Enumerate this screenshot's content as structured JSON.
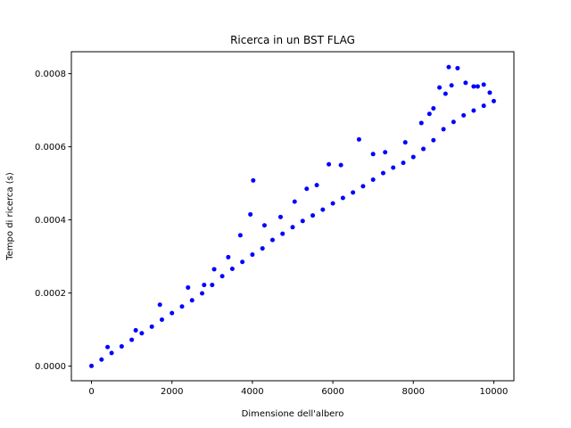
{
  "chart_data": {
    "type": "scatter",
    "title": "Ricerca in un BST FLAG",
    "xlabel": "Dimensione dell'albero",
    "ylabel": "Tempo di ricerca (s)",
    "xlim": [
      -500,
      10500
    ],
    "ylim": [
      -4e-05,
      0.00086
    ],
    "xticks": [
      0,
      2000,
      4000,
      6000,
      8000,
      10000
    ],
    "xtick_labels": [
      "0",
      "2000",
      "4000",
      "6000",
      "8000",
      "10000"
    ],
    "yticks": [
      0,
      0.0002,
      0.0004,
      0.0006,
      0.0008
    ],
    "ytick_labels": [
      "0.0000",
      "0.0002",
      "0.0004",
      "0.0006",
      "0.0008"
    ],
    "grid": false,
    "series": [
      {
        "color": "#0000ff",
        "marker": "circle",
        "x": [
          0,
          250,
          500,
          750,
          1000,
          1250,
          1500,
          1750,
          2000,
          2250,
          2500,
          2750,
          3000,
          3250,
          3500,
          3750,
          4000,
          4250,
          4500,
          4750,
          5000,
          5250,
          5500,
          5750,
          6000,
          6250,
          6500,
          6750,
          7000,
          7250,
          7500,
          7750,
          8000,
          8250,
          8500,
          8750,
          9000,
          9250,
          9500,
          9750,
          10000
        ],
        "y": [
          5e-07,
          1.8e-05,
          3.6e-05,
          5.4e-05,
          7.2e-05,
          9e-05,
          0.000108,
          0.000127,
          0.000145,
          0.000163,
          0.00018,
          0.000199,
          0.000222,
          0.000246,
          0.000266,
          0.000285,
          0.000305,
          0.000322,
          0.000345,
          0.000362,
          0.00038,
          0.000397,
          0.000412,
          0.000428,
          0.000445,
          0.00046,
          0.000475,
          0.000492,
          0.00051,
          0.000528,
          0.000543,
          0.000556,
          0.000572,
          0.000594,
          0.000618,
          0.000648,
          0.000668,
          0.000686,
          0.000699,
          0.000712,
          0.000725
        ]
      },
      {
        "color": "#0000ff",
        "marker": "circle",
        "x": [
          400,
          1100,
          1700,
          2400,
          2800,
          3050,
          3400,
          3700,
          3950,
          4020,
          4300,
          4700,
          5050,
          5350,
          5600,
          5900,
          6200,
          6650,
          7000,
          7300,
          7800,
          8200,
          8400,
          8500,
          8650,
          8800,
          8880,
          8950,
          9100,
          9300,
          9500,
          9600,
          9750,
          9900
        ],
        "y": [
          5.2e-05,
          9.8e-05,
          0.000168,
          0.000215,
          0.000222,
          0.000265,
          0.000298,
          0.000358,
          0.000415,
          0.000508,
          0.000385,
          0.000408,
          0.00045,
          0.000485,
          0.000495,
          0.000552,
          0.00055,
          0.00062,
          0.00058,
          0.000585,
          0.000612,
          0.000665,
          0.00069,
          0.000705,
          0.000762,
          0.000745,
          0.000818,
          0.000768,
          0.000815,
          0.000775,
          0.000765,
          0.000765,
          0.00077,
          0.000748
        ]
      }
    ]
  }
}
